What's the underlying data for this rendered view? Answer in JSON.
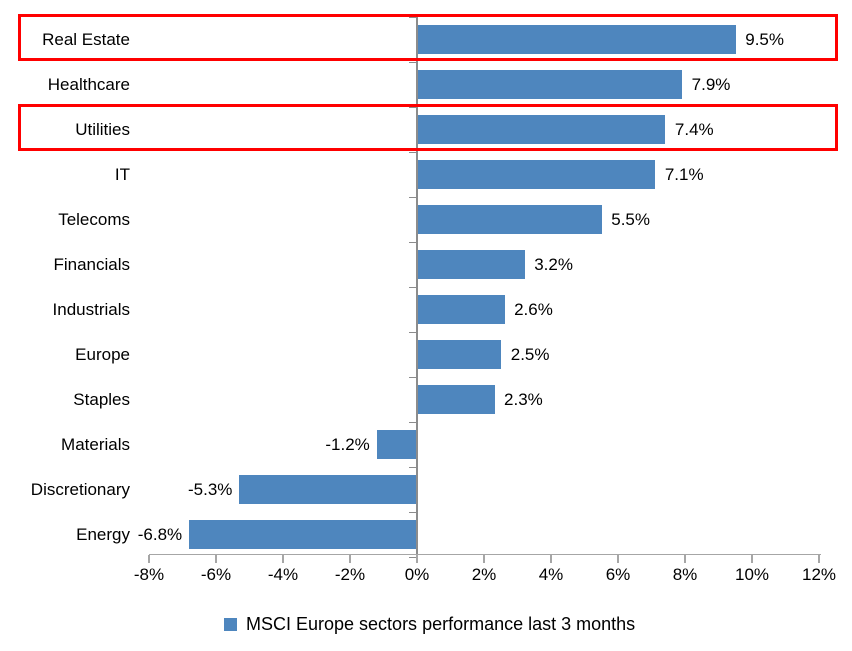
{
  "chart_data": {
    "type": "bar",
    "orientation": "horizontal",
    "title": "",
    "legend": "MSCI Europe sectors performance last 3 months",
    "legend_position": "bottom",
    "grid": false,
    "categories": [
      "Real Estate",
      "Healthcare",
      "Utilities",
      "IT",
      "Telecoms",
      "Financials",
      "Industrials",
      "Europe",
      "Staples",
      "Materials",
      "Discretionary",
      "Energy"
    ],
    "values": [
      9.5,
      7.9,
      7.4,
      7.1,
      5.5,
      3.2,
      2.6,
      2.5,
      2.3,
      -1.2,
      -5.3,
      -6.8
    ],
    "value_labels": [
      "9.5%",
      "7.9%",
      "7.4%",
      "7.1%",
      "5.5%",
      "3.2%",
      "2.6%",
      "2.5%",
      "2.3%",
      "-1.2%",
      "-5.3%",
      "-6.8%"
    ],
    "highlighted_categories": [
      "Real Estate",
      "Utilities"
    ],
    "xlim": [
      -8,
      12
    ],
    "x_ticks": [
      {
        "value": -8,
        "label": "-8%"
      },
      {
        "value": -6,
        "label": "-6%"
      },
      {
        "value": -4,
        "label": "-4%"
      },
      {
        "value": -2,
        "label": "-2%"
      },
      {
        "value": 0,
        "label": "0%"
      },
      {
        "value": 2,
        "label": "2%"
      },
      {
        "value": 4,
        "label": "4%"
      },
      {
        "value": 6,
        "label": "6%"
      },
      {
        "value": 8,
        "label": "8%"
      },
      {
        "value": 10,
        "label": "10%"
      },
      {
        "value": 12,
        "label": "12%"
      }
    ],
    "colors": {
      "bar": "#4E86BE",
      "highlight_box": "#FF0000",
      "value_axis_line": "#A6A6A6",
      "category_axis_line": "#8C8C8C",
      "text": "#000000"
    }
  }
}
